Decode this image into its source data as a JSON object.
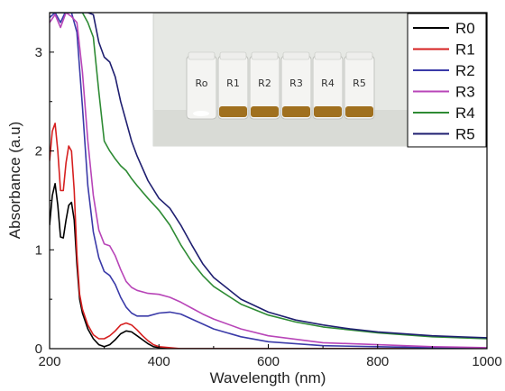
{
  "chart_data": {
    "type": "line",
    "xlabel": "Wavelength (nm)",
    "ylabel": "Absorbance (a.u)",
    "xlim": [
      200,
      1000
    ],
    "ylim": [
      0,
      3.4
    ],
    "xticks": [
      200,
      400,
      600,
      800,
      1000
    ],
    "yticks": [
      0,
      1,
      2,
      3
    ],
    "legend_position": "top-right",
    "series": [
      {
        "name": "R0",
        "color": "#000000",
        "x": [
          200,
          205,
          210,
          215,
          220,
          225,
          230,
          235,
          240,
          245,
          250,
          255,
          260,
          270,
          280,
          290,
          300,
          310,
          320,
          330,
          340,
          350,
          360,
          370,
          380,
          390,
          400,
          420,
          440,
          500,
          600,
          800,
          1000
        ],
        "y": [
          1.25,
          1.55,
          1.67,
          1.45,
          1.13,
          1.12,
          1.3,
          1.45,
          1.48,
          1.3,
          0.85,
          0.5,
          0.36,
          0.2,
          0.1,
          0.04,
          0.02,
          0.04,
          0.09,
          0.15,
          0.18,
          0.17,
          0.13,
          0.09,
          0.05,
          0.02,
          0.01,
          0.0,
          0.0,
          0.0,
          0.0,
          0.0,
          0.0
        ]
      },
      {
        "name": "R1",
        "color": "#d62020",
        "x": [
          200,
          205,
          210,
          215,
          220,
          225,
          230,
          235,
          240,
          245,
          250,
          255,
          260,
          270,
          280,
          290,
          300,
          310,
          320,
          330,
          340,
          350,
          360,
          370,
          380,
          390,
          400,
          420,
          440,
          500,
          600,
          800,
          1000
        ],
        "y": [
          1.9,
          2.2,
          2.28,
          2.0,
          1.6,
          1.6,
          1.88,
          2.05,
          2.0,
          1.6,
          0.95,
          0.55,
          0.4,
          0.24,
          0.14,
          0.1,
          0.1,
          0.13,
          0.18,
          0.24,
          0.26,
          0.24,
          0.19,
          0.13,
          0.08,
          0.04,
          0.02,
          0.01,
          0.0,
          0.0,
          0.0,
          0.0,
          0.0
        ]
      },
      {
        "name": "R2",
        "color": "#3a3aa8",
        "x": [
          200,
          210,
          220,
          230,
          240,
          250,
          260,
          270,
          280,
          290,
          300,
          310,
          320,
          330,
          340,
          350,
          360,
          380,
          400,
          420,
          440,
          460,
          480,
          500,
          550,
          600,
          700,
          800,
          900,
          1000
        ],
        "y": [
          3.35,
          3.4,
          3.3,
          3.42,
          3.4,
          3.2,
          2.45,
          1.65,
          1.18,
          0.92,
          0.78,
          0.74,
          0.65,
          0.52,
          0.42,
          0.36,
          0.33,
          0.33,
          0.36,
          0.37,
          0.35,
          0.3,
          0.25,
          0.2,
          0.12,
          0.07,
          0.03,
          0.02,
          0.01,
          0.0
        ]
      },
      {
        "name": "R3",
        "color": "#b845b8",
        "x": [
          200,
          210,
          220,
          230,
          240,
          250,
          260,
          270,
          280,
          290,
          300,
          310,
          320,
          330,
          340,
          350,
          360,
          380,
          400,
          420,
          440,
          460,
          480,
          500,
          550,
          600,
          700,
          800,
          900,
          1000
        ],
        "y": [
          3.3,
          3.38,
          3.25,
          3.4,
          3.36,
          3.3,
          2.8,
          2.1,
          1.55,
          1.2,
          1.06,
          1.04,
          0.94,
          0.8,
          0.68,
          0.62,
          0.59,
          0.56,
          0.55,
          0.52,
          0.47,
          0.41,
          0.35,
          0.3,
          0.2,
          0.13,
          0.06,
          0.04,
          0.02,
          0.01
        ]
      },
      {
        "name": "R4",
        "color": "#2e8b34",
        "x": [
          200,
          210,
          220,
          230,
          240,
          250,
          260,
          270,
          280,
          290,
          300,
          310,
          320,
          330,
          340,
          350,
          360,
          380,
          400,
          420,
          440,
          460,
          480,
          500,
          550,
          600,
          650,
          700,
          750,
          800,
          900,
          1000
        ],
        "y": [
          3.4,
          3.4,
          3.4,
          3.4,
          3.4,
          3.4,
          3.4,
          3.3,
          3.15,
          2.6,
          2.1,
          2.0,
          1.92,
          1.85,
          1.8,
          1.72,
          1.65,
          1.52,
          1.4,
          1.25,
          1.05,
          0.88,
          0.74,
          0.63,
          0.45,
          0.34,
          0.27,
          0.22,
          0.19,
          0.16,
          0.12,
          0.1
        ]
      },
      {
        "name": "R5",
        "color": "#1f1f70",
        "x": [
          200,
          210,
          220,
          230,
          240,
          250,
          260,
          270,
          280,
          290,
          300,
          310,
          320,
          330,
          340,
          350,
          360,
          380,
          400,
          420,
          440,
          460,
          480,
          500,
          550,
          600,
          650,
          700,
          750,
          800,
          900,
          1000
        ],
        "y": [
          3.4,
          3.4,
          3.4,
          3.4,
          3.4,
          3.4,
          3.4,
          3.4,
          3.38,
          3.1,
          2.95,
          2.9,
          2.75,
          2.5,
          2.3,
          2.1,
          1.95,
          1.7,
          1.52,
          1.42,
          1.25,
          1.05,
          0.86,
          0.72,
          0.5,
          0.37,
          0.29,
          0.24,
          0.2,
          0.17,
          0.13,
          0.11
        ]
      }
    ]
  },
  "inset": {
    "jars": [
      {
        "label": "Ro",
        "liquid": ""
      },
      {
        "label": "R1",
        "liquid": "#a0701f"
      },
      {
        "label": "R2",
        "liquid": "#a0701f"
      },
      {
        "label": "R3",
        "liquid": "#a0701f"
      },
      {
        "label": "R4",
        "liquid": "#a0701f"
      },
      {
        "label": "R5",
        "liquid": "#a0701f"
      }
    ]
  }
}
